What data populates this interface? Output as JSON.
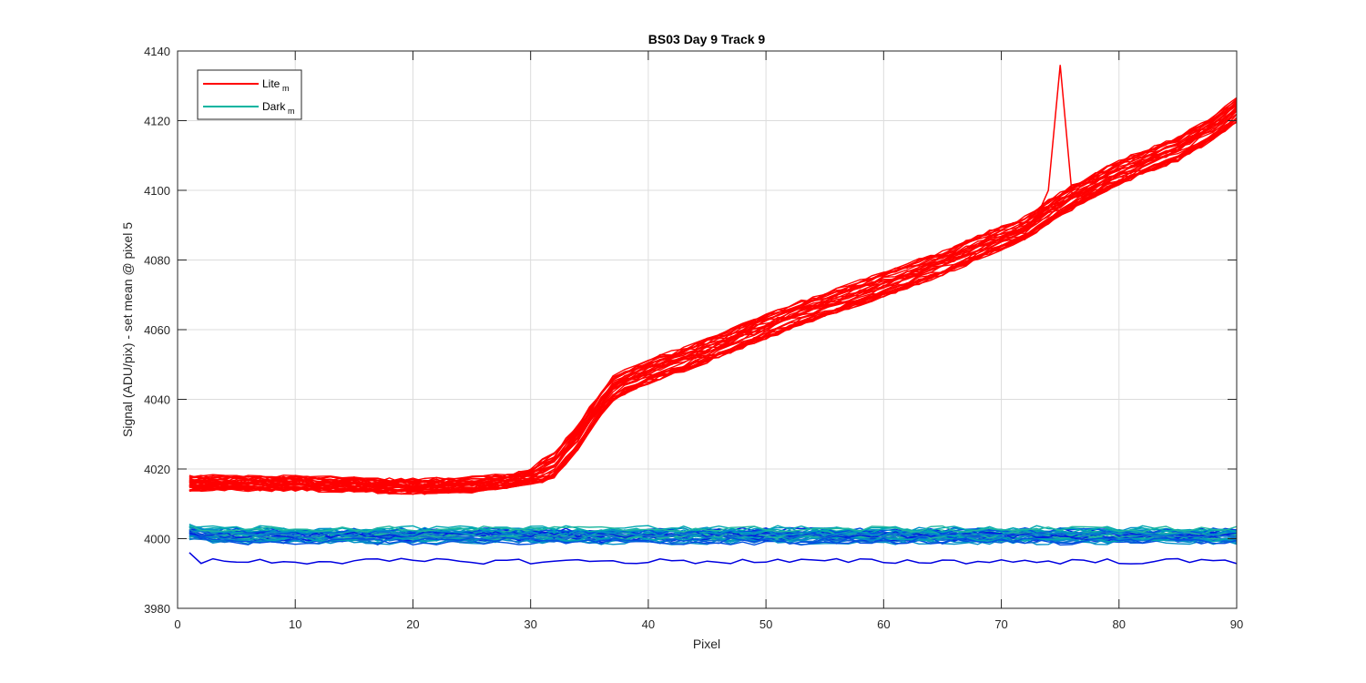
{
  "chart_data": {
    "type": "line",
    "title": "BS03 Day 9 Track 9",
    "xlabel": "Pixel",
    "ylabel": "Signal (ADU/pix) - set mean @ pixel 5",
    "xlim": [
      0,
      90
    ],
    "ylim": [
      3980,
      4140
    ],
    "xticks": [
      "0",
      "10",
      "20",
      "30",
      "40",
      "50",
      "60",
      "70",
      "80",
      "90"
    ],
    "yticks": [
      "3980",
      "4000",
      "4020",
      "4040",
      "4060",
      "4080",
      "4100",
      "4120",
      "4140"
    ],
    "grid": true,
    "legend_position": "top-left",
    "legend": [
      {
        "label": "Lite",
        "sub": "m",
        "color": "#ff0000"
      },
      {
        "label": "Dark",
        "sub": "m",
        "color": "#00b4a0"
      }
    ],
    "lite_trend": {
      "x": [
        1,
        10,
        20,
        25,
        28,
        30,
        32,
        34,
        36,
        37,
        38,
        40,
        45,
        50,
        55,
        60,
        65,
        70,
        72,
        75,
        77,
        80,
        85,
        88,
        90
      ],
      "y": [
        4016,
        4016,
        4015,
        4015.5,
        4016.5,
        4018,
        4021,
        4029,
        4039,
        4043,
        4045,
        4048,
        4054,
        4061,
        4067,
        4073,
        4079,
        4086.5,
        4089,
        4096,
        4100,
        4105,
        4112,
        4118,
        4123
      ]
    },
    "lite_spike": {
      "x": [
        74,
        75,
        76
      ],
      "y": [
        4100,
        4136,
        4099
      ]
    },
    "dark_level": 4001,
    "dark_outlier_level": 3993.5,
    "series_colors": {
      "lite": "#ff0000",
      "dark": [
        "#0020e0",
        "#0050e0",
        "#1070d0",
        "#0090c8",
        "#00a8b0",
        "#20b8a0"
      ]
    }
  }
}
